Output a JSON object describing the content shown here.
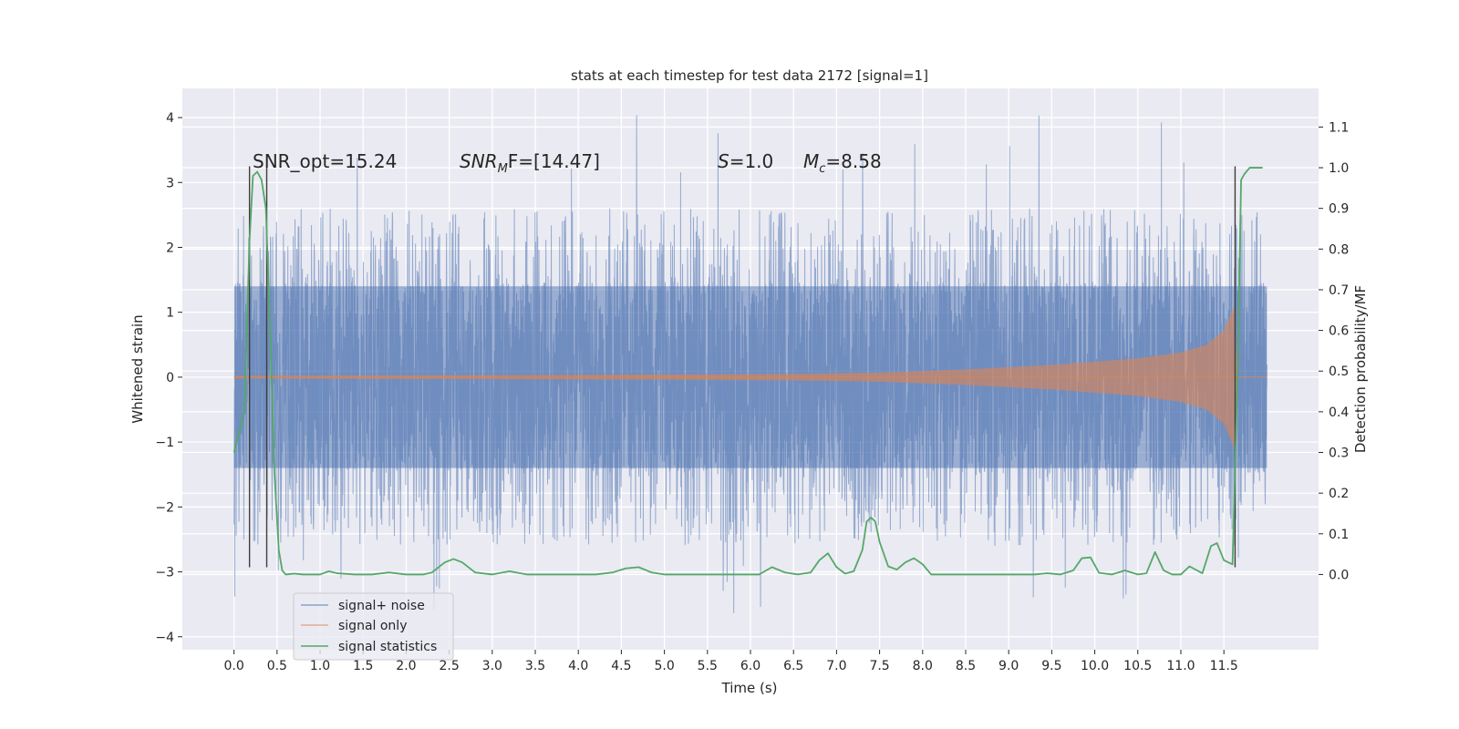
{
  "chart_data": {
    "type": "line",
    "title": "stats at each timestep for test data 2172 [signal=1]",
    "xlabel": "Time (s)",
    "ylabel": "Whitened strain",
    "y2label": "Detection probability/MF",
    "xlim": [
      -0.6,
      12.6
    ],
    "ylim": [
      -4.2,
      4.45
    ],
    "y2lim": [
      -0.185,
      1.195
    ],
    "x_ticks": [
      0.0,
      0.5,
      1.0,
      1.5,
      2.0,
      2.5,
      3.0,
      3.5,
      4.0,
      4.5,
      5.0,
      5.5,
      6.0,
      6.5,
      7.0,
      7.5,
      8.0,
      8.5,
      9.0,
      9.5,
      10.0,
      10.5,
      11.0,
      11.5
    ],
    "x_tick_labels": [
      "0.0",
      "0.5",
      "1.0",
      "1.5",
      "2.0",
      "2.5",
      "3.0",
      "3.5",
      "4.0",
      "4.5",
      "5.0",
      "5.5",
      "6.0",
      "6.5",
      "7.0",
      "7.5",
      "8.0",
      "8.5",
      "9.0",
      "9.5",
      "10.0",
      "10.5",
      "11.0",
      "11.5"
    ],
    "y_ticks": [
      -4,
      -3,
      -2,
      -1,
      0,
      1,
      2,
      3,
      4
    ],
    "y_tick_labels": [
      "−4",
      "−3",
      "−2",
      "−1",
      "0",
      "1",
      "2",
      "3",
      "4"
    ],
    "y2_ticks": [
      0.0,
      0.1,
      0.2,
      0.3,
      0.4,
      0.5,
      0.6,
      0.7,
      0.8,
      0.9,
      1.0,
      1.1
    ],
    "y2_tick_labels": [
      "0.0",
      "0.1",
      "0.2",
      "0.3",
      "0.4",
      "0.5",
      "0.6",
      "0.7",
      "0.8",
      "0.9",
      "1.0",
      "1.1"
    ],
    "grid": true,
    "legend_position": "lower-left",
    "annotations": {
      "snr_opt": "SNR_opt=15.24",
      "snr_mf_main": "SNR",
      "snr_mf_sub": "M",
      "snr_mf_rest": "F=[14.47]",
      "s_italic": "S",
      "s_value": "=1.0",
      "mc_italic": "M",
      "mc_sub": "c",
      "mc_value": "=8.58"
    },
    "series": [
      {
        "name": "signal+ noise",
        "color": "#4c72b0",
        "axis": "left",
        "noise_envelope": {
          "x_range": [
            0.0,
            12.0
          ],
          "core_band": [
            -1.4,
            1.4
          ],
          "typical_peaks": [
            -2.6,
            2.6
          ],
          "extreme_max": 4.1,
          "extreme_min": -3.65
        }
      },
      {
        "name": "signal only",
        "color": "#dd8452",
        "axis": "left",
        "chirp": {
          "x": [
            0.0,
            3.0,
            5.0,
            6.5,
            7.5,
            8.5,
            9.5,
            10.5,
            11.0,
            11.3,
            11.5,
            11.62,
            11.66,
            12.0
          ],
          "amplitude": [
            0.02,
            0.03,
            0.04,
            0.05,
            0.07,
            0.12,
            0.19,
            0.29,
            0.38,
            0.5,
            0.72,
            1.1,
            0.0,
            0.0
          ]
        }
      },
      {
        "name": "signal statistics",
        "color": "#55a868",
        "axis": "right",
        "x": [
          0.0,
          0.12,
          0.18,
          0.22,
          0.27,
          0.32,
          0.37,
          0.42,
          0.47,
          0.52,
          0.56,
          0.6,
          0.7,
          0.8,
          0.9,
          1.0,
          1.1,
          1.2,
          1.4,
          1.6,
          1.8,
          2.0,
          2.2,
          2.3,
          2.45,
          2.55,
          2.65,
          2.8,
          3.0,
          3.2,
          3.4,
          3.6,
          3.8,
          4.0,
          4.2,
          4.4,
          4.55,
          4.7,
          4.85,
          5.0,
          5.3,
          5.6,
          5.9,
          6.1,
          6.25,
          6.4,
          6.55,
          6.7,
          6.8,
          6.9,
          7.0,
          7.1,
          7.2,
          7.3,
          7.35,
          7.4,
          7.45,
          7.5,
          7.6,
          7.7,
          7.8,
          7.9,
          8.0,
          8.1,
          8.3,
          8.5,
          8.8,
          9.1,
          9.3,
          9.45,
          9.6,
          9.75,
          9.85,
          9.95,
          10.05,
          10.2,
          10.35,
          10.5,
          10.6,
          10.7,
          10.8,
          10.9,
          11.0,
          11.1,
          11.25,
          11.35,
          11.42,
          11.5,
          11.6,
          11.66,
          11.7,
          11.74,
          11.8,
          11.88,
          11.95
        ],
        "y": [
          0.3,
          0.4,
          0.82,
          0.98,
          0.99,
          0.97,
          0.9,
          0.6,
          0.25,
          0.06,
          0.01,
          0.0,
          0.002,
          0.0,
          0.0,
          0.0,
          0.008,
          0.003,
          0.0,
          0.0,
          0.005,
          0.0,
          0.0,
          0.005,
          0.03,
          0.038,
          0.03,
          0.005,
          0.0,
          0.008,
          0.0,
          0.0,
          0.0,
          0.0,
          0.0,
          0.005,
          0.015,
          0.018,
          0.005,
          0.0,
          0.0,
          0.0,
          0.0,
          0.0,
          0.018,
          0.005,
          0.0,
          0.005,
          0.035,
          0.052,
          0.018,
          0.002,
          0.008,
          0.06,
          0.13,
          0.14,
          0.13,
          0.08,
          0.02,
          0.012,
          0.03,
          0.04,
          0.025,
          0.0,
          0.0,
          0.0,
          0.0,
          0.0,
          0.0,
          0.003,
          0.0,
          0.01,
          0.04,
          0.042,
          0.004,
          0.0,
          0.01,
          0.0,
          0.003,
          0.055,
          0.01,
          0.0,
          0.0,
          0.02,
          0.003,
          0.07,
          0.077,
          0.035,
          0.025,
          0.5,
          0.97,
          0.985,
          1.0,
          1.0,
          1.0
        ]
      }
    ],
    "vertical_markers": [
      {
        "x": 0.18,
        "y_top": 3.25,
        "y_bottom": -2.93
      },
      {
        "x": 0.38,
        "y_top": 3.25,
        "y_bottom": -2.93
      },
      {
        "x": 11.63,
        "y_top": 3.25,
        "y_bottom": -2.93
      }
    ],
    "legend": {
      "entries": [
        {
          "label": "signal+ noise",
          "color": "#4c72b0"
        },
        {
          "label": "signal only",
          "color": "#dd8452"
        },
        {
          "label": "signal statistics",
          "color": "#55a868"
        }
      ]
    }
  }
}
